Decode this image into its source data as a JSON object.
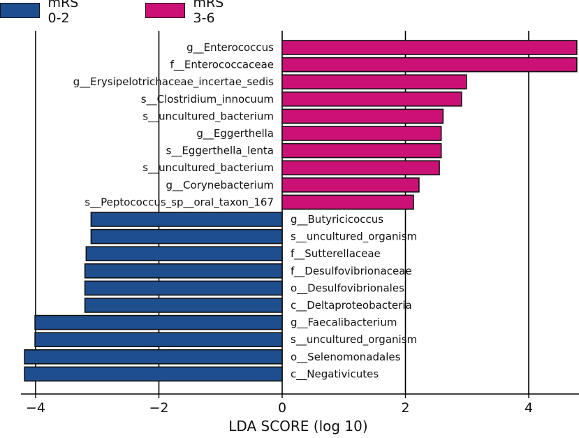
{
  "legend": [
    {
      "label": "mRS 0-2",
      "color": "#1f4e8f"
    },
    {
      "label": "mRS 3-6",
      "color": "#cc1176"
    }
  ],
  "chart_data": {
    "type": "bar",
    "orientation": "horizontal",
    "xlabel": "LDA SCORE (log 10)",
    "xlim": [
      -4.2,
      4.8
    ],
    "xticks": [
      -4,
      -2,
      0,
      2,
      4
    ],
    "xtick_labels": [
      "−4",
      "−2",
      "0",
      "2",
      "4"
    ],
    "grid": "vertical lines at ticks",
    "series": [
      {
        "name": "mRS 3-6",
        "color": "#cc1176"
      },
      {
        "name": "mRS 0-2",
        "color": "#1f4e8f"
      }
    ],
    "bars": [
      {
        "label": "g__Enterococcus",
        "value": 4.78,
        "group": "mRS 3-6"
      },
      {
        "label": "f__Enterococcaceae",
        "value": 4.78,
        "group": "mRS 3-6"
      },
      {
        "label": "g__Erysipelotrichaceae_incertae_sedis",
        "value": 2.99,
        "group": "mRS 3-6"
      },
      {
        "label": "s__Clostridium_innocuum",
        "value": 2.91,
        "group": "mRS 3-6"
      },
      {
        "label": "s__uncultured_bacterium",
        "value": 2.61,
        "group": "mRS 3-6"
      },
      {
        "label": "g__Eggerthella",
        "value": 2.58,
        "group": "mRS 3-6"
      },
      {
        "label": "s__Eggerthella_lenta",
        "value": 2.58,
        "group": "mRS 3-6"
      },
      {
        "label": "s__uncultured_bacterium",
        "value": 2.55,
        "group": "mRS 3-6"
      },
      {
        "label": "g__Corynebacterium",
        "value": 2.22,
        "group": "mRS 3-6"
      },
      {
        "label": "s__Peptococcus_sp__oral_taxon_167",
        "value": 2.13,
        "group": "mRS 3-6"
      },
      {
        "label": "g__Butyricicoccus",
        "value": -3.1,
        "group": "mRS 0-2"
      },
      {
        "label": "s__uncultured_organism",
        "value": -3.1,
        "group": "mRS 0-2"
      },
      {
        "label": "f__Sutterellaceae",
        "value": -3.18,
        "group": "mRS 0-2"
      },
      {
        "label": "f__Desulfovibrionaceae",
        "value": -3.2,
        "group": "mRS 0-2"
      },
      {
        "label": "o__Desulfovibrionales",
        "value": -3.2,
        "group": "mRS 0-2"
      },
      {
        "label": "c__Deltaproteobacteria",
        "value": -3.2,
        "group": "mRS 0-2"
      },
      {
        "label": "g__Faecalibacterium",
        "value": -4.01,
        "group": "mRS 0-2"
      },
      {
        "label": "s__uncultured_organism",
        "value": -4.01,
        "group": "mRS 0-2"
      },
      {
        "label": "o__Selenomonadales",
        "value": -4.18,
        "group": "mRS 0-2"
      },
      {
        "label": "c__Negativicutes",
        "value": -4.18,
        "group": "mRS 0-2"
      }
    ]
  }
}
